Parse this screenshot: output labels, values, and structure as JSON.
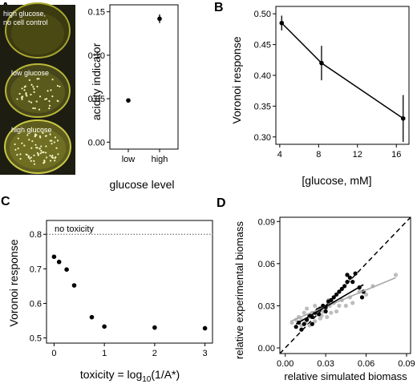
{
  "figure": {
    "panel_letters": [
      "A",
      "B",
      "C",
      "D"
    ],
    "plate_labels": [
      "high glucose,",
      "no cell control",
      "low glucose",
      "high glucose"
    ]
  },
  "chart_data": [
    {
      "id": "A",
      "type": "scatter",
      "categories": [
        "low",
        "high"
      ],
      "values": [
        0.048,
        0.142
      ],
      "errors": [
        0.002,
        0.005
      ],
      "xlabel": "glucose level",
      "ylabel": "acidity indicator",
      "yticks": [
        "0.00",
        "0.05",
        "0.10",
        "0.15"
      ],
      "ytick_values": [
        0,
        0.05,
        0.1,
        0.15
      ],
      "ylim": [
        -0.008,
        0.158
      ]
    },
    {
      "id": "B",
      "type": "line",
      "x": [
        4.2,
        8.3,
        16.7
      ],
      "y": [
        0.485,
        0.42,
        0.33
      ],
      "errors": [
        0.012,
        0.028,
        0.038
      ],
      "xlabel": "[glucose, mM]",
      "ylabel": "Voronoi response",
      "xticks": [
        "4",
        "8",
        "12",
        "16"
      ],
      "xtick_values": [
        4,
        8,
        12,
        16
      ],
      "yticks": [
        "0.30",
        "0.35",
        "0.40",
        "0.45",
        "0.50"
      ],
      "ytick_values": [
        0.3,
        0.35,
        0.4,
        0.45,
        0.5
      ],
      "xlim": [
        3.6,
        17.3
      ],
      "ylim": [
        0.288,
        0.512
      ]
    },
    {
      "id": "C",
      "type": "scatter",
      "x": [
        0,
        0.1,
        0.25,
        0.4,
        0.75,
        1.0,
        2.0,
        3.0
      ],
      "y": [
        0.735,
        0.72,
        0.698,
        0.652,
        0.56,
        0.533,
        0.53,
        0.528
      ],
      "reference_y": 0.8,
      "reference_label": "no toxicity",
      "xlabel_prefix": "toxicity = log",
      "xlabel_sub": "10",
      "xlabel_suffix": "(1/A*)",
      "ylabel": "Voronoi response",
      "xticks": [
        "0",
        "1",
        "2",
        "3"
      ],
      "xtick_values": [
        0,
        1,
        2,
        3
      ],
      "yticks": [
        "0.5",
        "0.6",
        "0.7",
        "0.8"
      ],
      "ytick_values": [
        0.5,
        0.6,
        0.7,
        0.8
      ],
      "xlim": [
        -0.15,
        3.15
      ],
      "ylim": [
        0.485,
        0.84
      ]
    },
    {
      "id": "D",
      "type": "scatter",
      "xlabel": "relative simulated biomass",
      "ylabel": "relative experimental biomass",
      "xticks": [
        "0.00",
        "0.03",
        "0.06",
        "0.09"
      ],
      "xtick_values": [
        0,
        0.03,
        0.06,
        0.09
      ],
      "yticks": [
        "0.00",
        "0.03",
        "0.06",
        "0.09"
      ],
      "ytick_values": [
        0,
        0.03,
        0.06,
        0.09
      ],
      "xlim": [
        -0.004,
        0.093
      ],
      "ylim": [
        -0.004,
        0.093
      ],
      "identity_line": true,
      "series": [
        {
          "color": "#bdbdbd",
          "points": [
            [
              0.005,
              0.018
            ],
            [
              0.008,
              0.02
            ],
            [
              0.01,
              0.022
            ],
            [
              0.012,
              0.02
            ],
            [
              0.014,
              0.025
            ],
            [
              0.015,
              0.018
            ],
            [
              0.016,
              0.028
            ],
            [
              0.018,
              0.022
            ],
            [
              0.02,
              0.025
            ],
            [
              0.022,
              0.019
            ],
            [
              0.022,
              0.03
            ],
            [
              0.024,
              0.024
            ],
            [
              0.025,
              0.028
            ],
            [
              0.026,
              0.021
            ],
            [
              0.028,
              0.026
            ],
            [
              0.03,
              0.028
            ],
            [
              0.031,
              0.022
            ],
            [
              0.033,
              0.03
            ],
            [
              0.034,
              0.025
            ],
            [
              0.036,
              0.032
            ],
            [
              0.038,
              0.026
            ],
            [
              0.04,
              0.03
            ],
            [
              0.042,
              0.034
            ],
            [
              0.045,
              0.03
            ],
            [
              0.048,
              0.036
            ],
            [
              0.05,
              0.032
            ],
            [
              0.055,
              0.04
            ],
            [
              0.06,
              0.038
            ],
            [
              0.065,
              0.044
            ],
            [
              0.082,
              0.052
            ],
            [
              0.012,
              0.016
            ],
            [
              0.018,
              0.016
            ],
            [
              0.027,
              0.023
            ],
            [
              0.032,
              0.034
            ]
          ],
          "fit": [
            [
              0.004,
              0.019
            ],
            [
              0.082,
              0.05
            ]
          ]
        },
        {
          "color": "#000000",
          "points": [
            [
              0.008,
              0.015
            ],
            [
              0.01,
              0.018
            ],
            [
              0.012,
              0.013
            ],
            [
              0.014,
              0.017
            ],
            [
              0.016,
              0.02
            ],
            [
              0.018,
              0.023
            ],
            [
              0.02,
              0.022
            ],
            [
              0.022,
              0.025
            ],
            [
              0.024,
              0.027
            ],
            [
              0.025,
              0.024
            ],
            [
              0.026,
              0.028
            ],
            [
              0.028,
              0.03
            ],
            [
              0.03,
              0.029
            ],
            [
              0.032,
              0.033
            ],
            [
              0.034,
              0.034
            ],
            [
              0.036,
              0.036
            ],
            [
              0.038,
              0.038
            ],
            [
              0.04,
              0.04
            ],
            [
              0.042,
              0.042
            ],
            [
              0.044,
              0.044
            ],
            [
              0.046,
              0.047
            ],
            [
              0.048,
              0.05
            ],
            [
              0.05,
              0.047
            ],
            [
              0.052,
              0.053
            ],
            [
              0.055,
              0.043
            ],
            [
              0.058,
              0.04
            ],
            [
              0.046,
              0.052
            ],
            [
              0.02,
              0.017
            ],
            [
              0.03,
              0.026
            ],
            [
              0.057,
              0.036
            ]
          ],
          "fit": [
            [
              0.008,
              0.017
            ],
            [
              0.058,
              0.045
            ]
          ]
        }
      ]
    }
  ]
}
